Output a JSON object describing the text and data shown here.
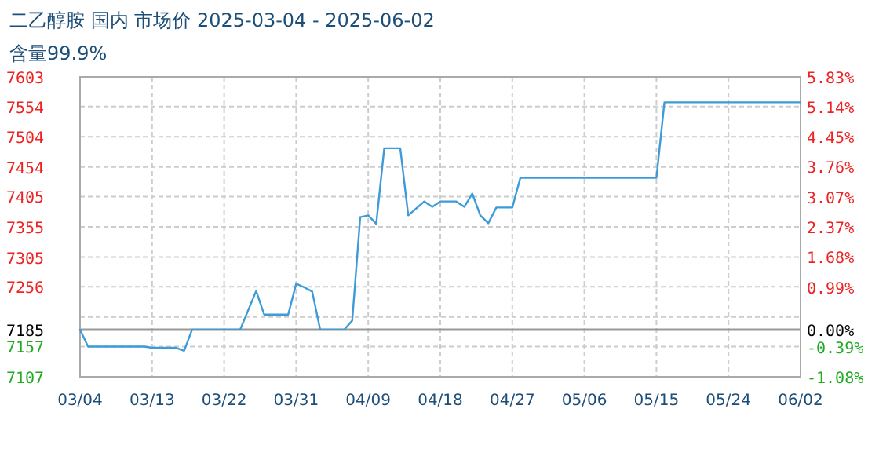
{
  "chart_data": {
    "type": "line",
    "title": "二乙醇胺 国内 市场价 2025-03-04 - 2025-06-02",
    "subtitle": "含量99.9%",
    "x": [
      "2025-03-04",
      "2025-03-05",
      "2025-03-12",
      "2025-03-13",
      "2025-03-16",
      "2025-03-17",
      "2025-03-18",
      "2025-03-24",
      "2025-03-26",
      "2025-03-27",
      "2025-03-30",
      "2025-03-31",
      "2025-04-01",
      "2025-04-02",
      "2025-04-03",
      "2025-04-06",
      "2025-04-07",
      "2025-04-08",
      "2025-04-09",
      "2025-04-10",
      "2025-04-11",
      "2025-04-13",
      "2025-04-14",
      "2025-04-16",
      "2025-04-17",
      "2025-04-18",
      "2025-04-20",
      "2025-04-21",
      "2025-04-22",
      "2025-04-23",
      "2025-04-24",
      "2025-04-25",
      "2025-04-27",
      "2025-04-28",
      "2025-05-15",
      "2025-05-16",
      "2025-06-02"
    ],
    "series": [
      {
        "color": "#3d9bd8",
        "values": [
          7185,
          7157,
          7157,
          7155,
          7155,
          7150,
          7185,
          7185,
          7249,
          7210,
          7210,
          7261,
          7255,
          7248,
          7185,
          7185,
          7200,
          7371,
          7374,
          7360,
          7485,
          7485,
          7374,
          7397,
          7388,
          7397,
          7397,
          7388,
          7410,
          7374,
          7361,
          7387,
          7387,
          7436,
          7436,
          7561,
          7561
        ]
      }
    ],
    "xlim": [
      "2025-03-04",
      "2025-06-02"
    ],
    "xticks": [
      {
        "value": "2025-03-04",
        "label": "03/04"
      },
      {
        "value": "2025-03-13",
        "label": "03/13"
      },
      {
        "value": "2025-03-22",
        "label": "03/22"
      },
      {
        "value": "2025-03-31",
        "label": "03/31"
      },
      {
        "value": "2025-04-09",
        "label": "04/09"
      },
      {
        "value": "2025-04-18",
        "label": "04/18"
      },
      {
        "value": "2025-04-27",
        "label": "04/27"
      },
      {
        "value": "2025-05-06",
        "label": "05/06"
      },
      {
        "value": "2025-05-15",
        "label": "05/15"
      },
      {
        "value": "2025-05-24",
        "label": "05/24"
      },
      {
        "value": "2025-06-02",
        "label": "06/02"
      }
    ],
    "ylim": [
      7107,
      7603
    ],
    "yticks": [
      7107,
      7157,
      {
        "value": 7206,
        "label": null
      },
      7256,
      7305,
      7355,
      7405,
      7454,
      7504,
      7554,
      7603,
      7185
    ],
    "y2lim": [
      -1.08,
      5.83
    ],
    "y2ticks": [
      {
        "value": -1.08,
        "label": "-1.08%"
      },
      {
        "value": -0.39,
        "label": "-0.39%"
      },
      {
        "value": 0,
        "label": "0.00%"
      },
      {
        "value": 0.99,
        "label": "0.99%"
      },
      {
        "value": 1.68,
        "label": "1.68%"
      },
      {
        "value": 2.37,
        "label": "2.37%"
      },
      {
        "value": 3.07,
        "label": "3.07%"
      },
      {
        "value": 3.76,
        "label": "3.76%"
      },
      {
        "value": 4.45,
        "label": "4.45%"
      },
      {
        "value": 5.14,
        "label": "5.14%"
      },
      {
        "value": 5.83,
        "label": "5.83%"
      }
    ],
    "ref_lines": [
      {
        "axis": "y",
        "value": 7185,
        "color": "#999999"
      }
    ],
    "grid": true,
    "line_style": "solid",
    "marker": "none"
  }
}
